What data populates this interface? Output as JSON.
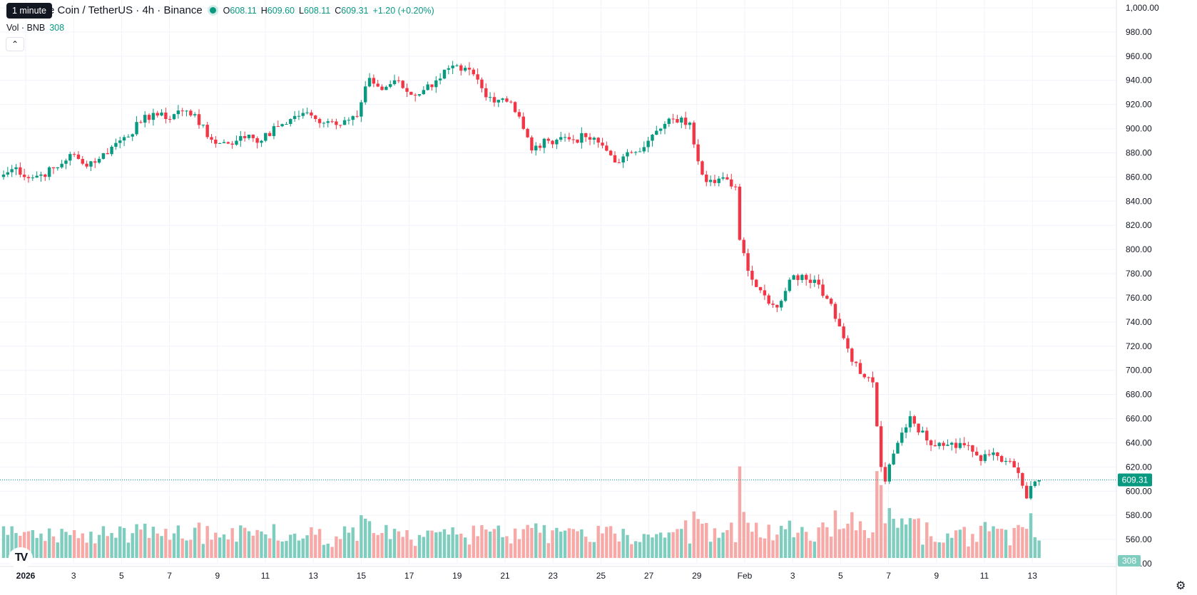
{
  "legend": {
    "symbol_title": "e Coin / TetherUS · 4h · Binance",
    "open_key": "O",
    "open": "608.11",
    "high_key": "H",
    "high": "609.60",
    "low_key": "L",
    "low": "608.11",
    "close_key": "C",
    "close": "609.31",
    "change": "+1.20 (+0.20%)"
  },
  "tooltip": "1 minute",
  "volume_legend": {
    "label": "Vol · BNB",
    "value": "308"
  },
  "collapse_icon": "chevron-up-icon",
  "colors": {
    "up": "#089981",
    "down": "#f23645",
    "up_volume": "#7fcdbf",
    "down_volume": "#f7a9a7",
    "grid": "#f0f3fa",
    "text": "#131722"
  },
  "chart_data": {
    "type": "candlestick",
    "interval": "4h",
    "y_ticks": [
      "1,000.00",
      "980.00",
      "960.00",
      "940.00",
      "920.00",
      "900.00",
      "880.00",
      "860.00",
      "840.00",
      "820.00",
      "800.00",
      "780.00",
      "760.00",
      "740.00",
      "720.00",
      "700.00",
      "680.00",
      "660.00",
      "640.00",
      "620.00",
      "600.00",
      "580.00",
      "560.00",
      "540.00"
    ],
    "ylim": [
      540,
      1000
    ],
    "x_ticks": [
      "2026",
      "3",
      "5",
      "7",
      "9",
      "11",
      "13",
      "15",
      "17",
      "19",
      "21",
      "23",
      "25",
      "27",
      "29",
      "Feb",
      "3",
      "5",
      "7",
      "9",
      "11",
      "13"
    ],
    "last_price": "609.31",
    "last_volume": "308",
    "anchors": [
      [
        0,
        862
      ],
      [
        3,
        868
      ],
      [
        6,
        859
      ],
      [
        9,
        862
      ],
      [
        13,
        868
      ],
      [
        16,
        879
      ],
      [
        19,
        871
      ],
      [
        23,
        875
      ],
      [
        26,
        885
      ],
      [
        29,
        893
      ],
      [
        33,
        905
      ],
      [
        36,
        913
      ],
      [
        39,
        908
      ],
      [
        42,
        915
      ],
      [
        46,
        912
      ],
      [
        49,
        893
      ],
      [
        52,
        888
      ],
      [
        56,
        890
      ],
      [
        59,
        895
      ],
      [
        62,
        890
      ],
      [
        66,
        902
      ],
      [
        69,
        908
      ],
      [
        72,
        913
      ],
      [
        75,
        908
      ],
      [
        79,
        906
      ],
      [
        82,
        907
      ],
      [
        85,
        910
      ],
      [
        88,
        942
      ],
      [
        91,
        932
      ],
      [
        94,
        940
      ],
      [
        98,
        928
      ],
      [
        101,
        932
      ],
      [
        104,
        940
      ],
      [
        107,
        950
      ],
      [
        110,
        948
      ],
      [
        113,
        945
      ],
      [
        116,
        926
      ],
      [
        120,
        925
      ],
      [
        122,
        922
      ],
      [
        124,
        910
      ],
      [
        127,
        882
      ],
      [
        131,
        890
      ],
      [
        134,
        893
      ],
      [
        137,
        891
      ],
      [
        140,
        893
      ],
      [
        144,
        886
      ],
      [
        146,
        878
      ],
      [
        148,
        872
      ],
      [
        151,
        880
      ],
      [
        155,
        890
      ],
      [
        158,
        900
      ],
      [
        161,
        908
      ],
      [
        165,
        905
      ],
      [
        168,
        862
      ],
      [
        171,
        855
      ],
      [
        174,
        858
      ],
      [
        176,
        852
      ],
      [
        177,
        808
      ],
      [
        180,
        775
      ],
      [
        183,
        762
      ],
      [
        186,
        752
      ],
      [
        189,
        775
      ],
      [
        192,
        779
      ],
      [
        195,
        775
      ],
      [
        199,
        755
      ],
      [
        203,
        718
      ],
      [
        206,
        697
      ],
      [
        209,
        690
      ],
      [
        211,
        620
      ],
      [
        212,
        608
      ],
      [
        215,
        640
      ],
      [
        218,
        662
      ],
      [
        222,
        642
      ],
      [
        225,
        640
      ],
      [
        228,
        640
      ],
      [
        232,
        638
      ],
      [
        235,
        625
      ],
      [
        238,
        632
      ],
      [
        241,
        625
      ],
      [
        244,
        615
      ],
      [
        246,
        594
      ],
      [
        248,
        608
      ],
      [
        249,
        609
      ]
    ],
    "volume_max": 1100
  }
}
